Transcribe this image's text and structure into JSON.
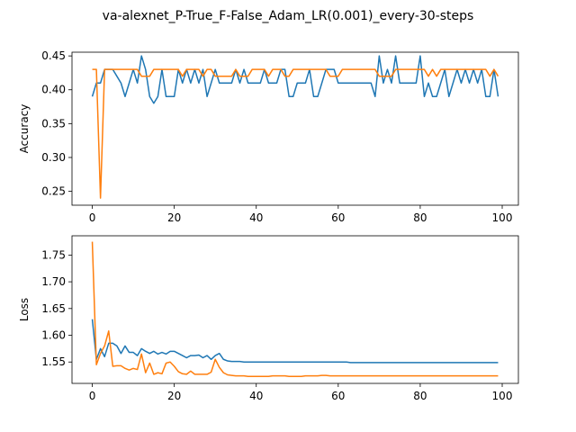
{
  "figure": {
    "title": "va-alexnet_P-True_F-False_Adam_LR(0.001)_every-30-steps"
  },
  "colors": {
    "series_blue": "#1f77b4",
    "series_orange": "#ff7f0e"
  },
  "chart_data": [
    {
      "type": "line",
      "title": "",
      "xlabel": "",
      "ylabel": "Accuracy",
      "xlim": [
        -4.95,
        103.95
      ],
      "ylim": [
        0.2295,
        0.4555
      ],
      "xticks": [
        0,
        20,
        40,
        60,
        80,
        100
      ],
      "yticks": [
        0.25,
        0.3,
        0.35,
        0.4,
        0.45
      ],
      "ytick_labels": [
        "0.25",
        "0.30",
        "0.35",
        "0.40",
        "0.45"
      ],
      "grid": false,
      "series": [
        {
          "color": "#1f77b4",
          "x": [
            0,
            1,
            2,
            3,
            4,
            5,
            6,
            7,
            8,
            9,
            10,
            11,
            12,
            13,
            14,
            15,
            16,
            17,
            18,
            19,
            20,
            21,
            22,
            23,
            24,
            25,
            26,
            27,
            28,
            29,
            30,
            31,
            32,
            33,
            34,
            35,
            36,
            37,
            38,
            39,
            40,
            41,
            42,
            43,
            44,
            45,
            46,
            47,
            48,
            49,
            50,
            51,
            52,
            53,
            54,
            55,
            56,
            57,
            58,
            59,
            60,
            61,
            62,
            63,
            64,
            65,
            66,
            67,
            68,
            69,
            70,
            71,
            72,
            73,
            74,
            75,
            76,
            77,
            78,
            79,
            80,
            81,
            82,
            83,
            84,
            85,
            86,
            87,
            88,
            89,
            90,
            91,
            92,
            93,
            94,
            95,
            96,
            97,
            98,
            99
          ],
          "y": [
            0.39,
            0.41,
            0.41,
            0.43,
            0.43,
            0.43,
            0.42,
            0.41,
            0.39,
            0.41,
            0.43,
            0.41,
            0.45,
            0.43,
            0.39,
            0.38,
            0.39,
            0.43,
            0.39,
            0.39,
            0.39,
            0.43,
            0.41,
            0.43,
            0.41,
            0.43,
            0.41,
            0.43,
            0.39,
            0.41,
            0.43,
            0.41,
            0.41,
            0.41,
            0.41,
            0.43,
            0.41,
            0.43,
            0.41,
            0.41,
            0.41,
            0.41,
            0.43,
            0.41,
            0.41,
            0.41,
            0.43,
            0.43,
            0.39,
            0.39,
            0.41,
            0.41,
            0.41,
            0.43,
            0.39,
            0.39,
            0.41,
            0.43,
            0.43,
            0.43,
            0.41,
            0.41,
            0.41,
            0.41,
            0.41,
            0.41,
            0.41,
            0.41,
            0.41,
            0.39,
            0.45,
            0.41,
            0.43,
            0.41,
            0.45,
            0.41,
            0.41,
            0.41,
            0.41,
            0.41,
            0.45,
            0.39,
            0.41,
            0.39,
            0.39,
            0.41,
            0.43,
            0.39,
            0.41,
            0.43,
            0.41,
            0.43,
            0.41,
            0.43,
            0.41,
            0.43,
            0.39,
            0.39,
            0.43,
            0.39
          ]
        },
        {
          "color": "#ff7f0e",
          "x": [
            0,
            1,
            2,
            3,
            4,
            5,
            6,
            7,
            8,
            9,
            10,
            11,
            12,
            13,
            14,
            15,
            16,
            17,
            18,
            19,
            20,
            21,
            22,
            23,
            24,
            25,
            26,
            27,
            28,
            29,
            30,
            31,
            32,
            33,
            34,
            35,
            36,
            37,
            38,
            39,
            40,
            41,
            42,
            43,
            44,
            45,
            46,
            47,
            48,
            49,
            50,
            51,
            52,
            53,
            54,
            55,
            56,
            57,
            58,
            59,
            60,
            61,
            62,
            63,
            64,
            65,
            66,
            67,
            68,
            69,
            70,
            71,
            72,
            73,
            74,
            75,
            76,
            77,
            78,
            79,
            80,
            81,
            82,
            83,
            84,
            85,
            86,
            87,
            88,
            89,
            90,
            91,
            92,
            93,
            94,
            95,
            96,
            97,
            98,
            99
          ],
          "y": [
            0.43,
            0.43,
            0.24,
            0.43,
            0.43,
            0.43,
            0.43,
            0.43,
            0.43,
            0.43,
            0.43,
            0.43,
            0.42,
            0.42,
            0.42,
            0.43,
            0.43,
            0.43,
            0.43,
            0.43,
            0.43,
            0.43,
            0.42,
            0.43,
            0.43,
            0.43,
            0.43,
            0.42,
            0.43,
            0.43,
            0.42,
            0.42,
            0.42,
            0.42,
            0.42,
            0.43,
            0.42,
            0.42,
            0.42,
            0.43,
            0.43,
            0.43,
            0.43,
            0.42,
            0.43,
            0.43,
            0.43,
            0.42,
            0.42,
            0.43,
            0.43,
            0.43,
            0.43,
            0.43,
            0.43,
            0.43,
            0.43,
            0.43,
            0.42,
            0.42,
            0.42,
            0.43,
            0.43,
            0.43,
            0.43,
            0.43,
            0.43,
            0.43,
            0.43,
            0.43,
            0.42,
            0.42,
            0.42,
            0.42,
            0.43,
            0.43,
            0.43,
            0.43,
            0.43,
            0.43,
            0.43,
            0.43,
            0.42,
            0.43,
            0.42,
            0.43,
            0.43,
            0.43,
            0.43,
            0.43,
            0.43,
            0.43,
            0.43,
            0.43,
            0.43,
            0.43,
            0.43,
            0.42,
            0.43,
            0.42
          ]
        }
      ]
    },
    {
      "type": "line",
      "title": "",
      "xlabel": "",
      "ylabel": "Loss",
      "xlim": [
        -4.95,
        103.95
      ],
      "ylim": [
        1.51,
        1.786
      ],
      "xticks": [
        0,
        20,
        40,
        60,
        80,
        100
      ],
      "yticks": [
        1.55,
        1.6,
        1.65,
        1.7,
        1.75
      ],
      "ytick_labels": [
        "1.55",
        "1.60",
        "1.65",
        "1.70",
        "1.75"
      ],
      "grid": false,
      "series": [
        {
          "color": "#1f77b4",
          "x": [
            0,
            1,
            2,
            3,
            4,
            5,
            6,
            7,
            8,
            9,
            10,
            11,
            12,
            13,
            14,
            15,
            16,
            17,
            18,
            19,
            20,
            21,
            22,
            23,
            24,
            25,
            26,
            27,
            28,
            29,
            30,
            31,
            32,
            33,
            34,
            35,
            36,
            37,
            38,
            39,
            40,
            41,
            42,
            43,
            44,
            45,
            46,
            47,
            48,
            49,
            50,
            51,
            52,
            53,
            54,
            55,
            56,
            57,
            58,
            59,
            60,
            61,
            62,
            63,
            64,
            65,
            66,
            67,
            68,
            69,
            70,
            71,
            72,
            73,
            74,
            75,
            76,
            77,
            78,
            79,
            80,
            81,
            82,
            83,
            84,
            85,
            86,
            87,
            88,
            89,
            90,
            91,
            92,
            93,
            94,
            95,
            96,
            97,
            98,
            99
          ],
          "y": [
            1.63,
            1.555,
            1.575,
            1.56,
            1.585,
            1.585,
            1.58,
            1.566,
            1.58,
            1.568,
            1.568,
            1.562,
            1.575,
            1.57,
            1.566,
            1.57,
            1.565,
            1.568,
            1.565,
            1.57,
            1.57,
            1.566,
            1.562,
            1.558,
            1.562,
            1.562,
            1.563,
            1.558,
            1.562,
            1.555,
            1.562,
            1.566,
            1.555,
            1.552,
            1.551,
            1.551,
            1.551,
            1.55,
            1.55,
            1.55,
            1.55,
            1.55,
            1.55,
            1.55,
            1.55,
            1.55,
            1.55,
            1.55,
            1.55,
            1.55,
            1.55,
            1.55,
            1.55,
            1.55,
            1.55,
            1.55,
            1.55,
            1.55,
            1.55,
            1.55,
            1.55,
            1.55,
            1.55,
            1.549,
            1.549,
            1.549,
            1.549,
            1.549,
            1.549,
            1.549,
            1.549,
            1.549,
            1.549,
            1.549,
            1.549,
            1.549,
            1.549,
            1.549,
            1.549,
            1.549,
            1.549,
            1.549,
            1.549,
            1.549,
            1.549,
            1.549,
            1.549,
            1.549,
            1.549,
            1.549,
            1.549,
            1.549,
            1.549,
            1.549,
            1.549,
            1.549,
            1.549,
            1.549,
            1.549,
            1.549
          ]
        },
        {
          "color": "#ff7f0e",
          "x": [
            0,
            1,
            2,
            3,
            4,
            5,
            6,
            7,
            8,
            9,
            10,
            11,
            12,
            13,
            14,
            15,
            16,
            17,
            18,
            19,
            20,
            21,
            22,
            23,
            24,
            25,
            26,
            27,
            28,
            29,
            30,
            31,
            32,
            33,
            34,
            35,
            36,
            37,
            38,
            39,
            40,
            41,
            42,
            43,
            44,
            45,
            46,
            47,
            48,
            49,
            50,
            51,
            52,
            53,
            54,
            55,
            56,
            57,
            58,
            59,
            60,
            61,
            62,
            63,
            64,
            65,
            66,
            67,
            68,
            69,
            70,
            71,
            72,
            73,
            74,
            75,
            76,
            77,
            78,
            79,
            80,
            81,
            82,
            83,
            84,
            85,
            86,
            87,
            88,
            89,
            90,
            91,
            92,
            93,
            94,
            95,
            96,
            97,
            98,
            99
          ],
          "y": [
            1.775,
            1.545,
            1.566,
            1.58,
            1.608,
            1.542,
            1.543,
            1.543,
            1.538,
            1.535,
            1.538,
            1.536,
            1.565,
            1.53,
            1.548,
            1.527,
            1.53,
            1.528,
            1.548,
            1.55,
            1.542,
            1.532,
            1.528,
            1.527,
            1.533,
            1.527,
            1.527,
            1.527,
            1.527,
            1.531,
            1.555,
            1.54,
            1.53,
            1.526,
            1.525,
            1.524,
            1.524,
            1.524,
            1.523,
            1.523,
            1.523,
            1.523,
            1.523,
            1.523,
            1.524,
            1.524,
            1.524,
            1.524,
            1.523,
            1.523,
            1.523,
            1.523,
            1.524,
            1.524,
            1.524,
            1.524,
            1.525,
            1.525,
            1.524,
            1.524,
            1.524,
            1.524,
            1.524,
            1.524,
            1.524,
            1.524,
            1.524,
            1.524,
            1.524,
            1.524,
            1.524,
            1.524,
            1.524,
            1.524,
            1.524,
            1.524,
            1.524,
            1.524,
            1.524,
            1.524,
            1.524,
            1.524,
            1.524,
            1.524,
            1.524,
            1.524,
            1.524,
            1.524,
            1.524,
            1.524,
            1.524,
            1.524,
            1.524,
            1.524,
            1.524,
            1.524,
            1.524,
            1.524,
            1.524,
            1.524
          ]
        }
      ]
    }
  ]
}
